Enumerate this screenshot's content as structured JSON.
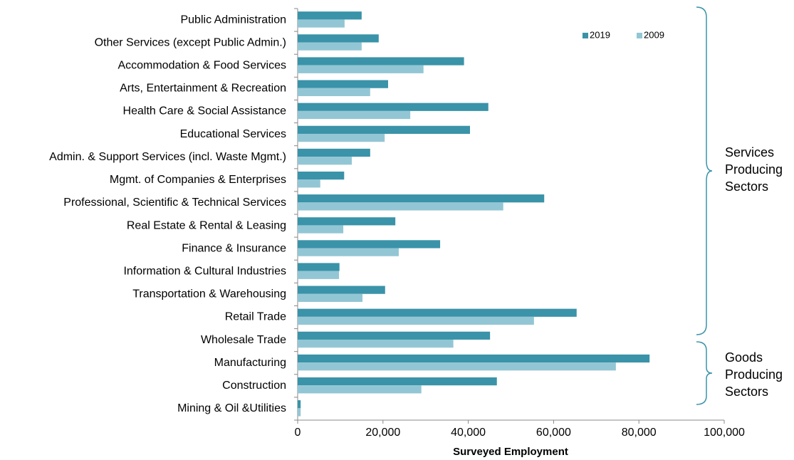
{
  "chart_data": {
    "type": "hbar",
    "x_label": "Surveyed Employment",
    "categories": [
      "Public Administration",
      "Other Services (except Public Admin.)",
      "Accommodation & Food Services",
      "Arts, Entertainment & Recreation",
      "Health Care & Social Assistance",
      "Educational Services",
      "Admin. & Support Services (incl. Waste Mgmt.)",
      "Mgmt. of Companies & Enterprises",
      "Professional, Scientific & Technical Services",
      "Real Estate & Rental & Leasing",
      "Finance & Insurance",
      "Information & Cultural Industries",
      "Transportation & Warehousing",
      "Retail Trade",
      "Wholesale Trade",
      "Manufacturing",
      "Construction",
      "Mining & Oil &Utilities"
    ],
    "series": [
      {
        "name": "2019",
        "color": "#3a93a8",
        "values": [
          15000,
          19000,
          39000,
          21200,
          44700,
          40400,
          17000,
          10900,
          57800,
          22900,
          33400,
          9800,
          20500,
          65400,
          45100,
          82500,
          46700,
          700
        ]
      },
      {
        "name": "2009",
        "color": "#93c6d4",
        "values": [
          11000,
          15000,
          29500,
          17000,
          26400,
          20400,
          12700,
          5300,
          48200,
          10700,
          23700,
          9700,
          15200,
          55400,
          36500,
          74600,
          29000,
          700
        ]
      }
    ],
    "xlim": [
      0,
      100000
    ],
    "xticks": [
      0,
      {
        "value": 20000,
        "label": "20,000"
      },
      {
        "value": 40000,
        "label": "40,000"
      },
      {
        "value": 60000,
        "label": "60,000"
      },
      {
        "value": 80000,
        "label": "80,000"
      },
      {
        "value": 100000,
        "label": "100,000"
      }
    ],
    "legend": "top-right",
    "annotations": [
      {
        "lines": [
          "Services",
          "Producing",
          "Sectors"
        ]
      },
      {
        "lines": [
          "Goods",
          "Producing",
          "Sectors"
        ]
      }
    ]
  }
}
